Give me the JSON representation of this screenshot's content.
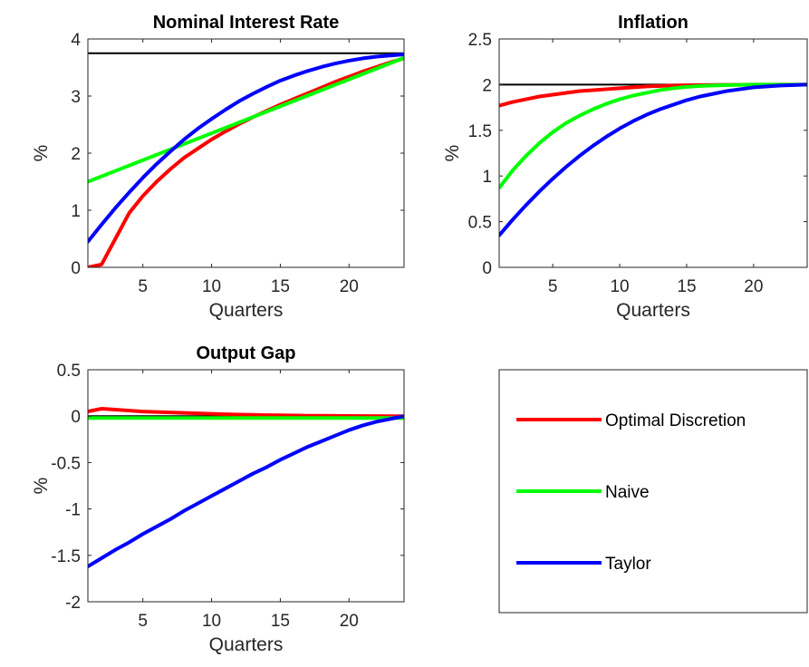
{
  "chart_data": [
    {
      "type": "line",
      "title": "Nominal Interest Rate",
      "xlabel": "Quarters",
      "ylabel": "%",
      "xlim": [
        1,
        24
      ],
      "ylim": [
        0,
        4
      ],
      "xticks": [
        "5",
        "10",
        "15",
        "20"
      ],
      "yticks": [
        "0",
        "1",
        "2",
        "3",
        "4"
      ],
      "reference_line": {
        "y": 3.75,
        "color": "#000000"
      },
      "series": [
        {
          "color": "#ff0000",
          "x": [
            1,
            2,
            3,
            4,
            5,
            6,
            7,
            8,
            9,
            10,
            11,
            12,
            13,
            14,
            15,
            16,
            17,
            18,
            19,
            20,
            21,
            22,
            23,
            24
          ],
          "values": [
            0,
            0.05,
            0.5,
            0.95,
            1.25,
            1.5,
            1.72,
            1.92,
            2.08,
            2.24,
            2.38,
            2.51,
            2.63,
            2.74,
            2.85,
            2.95,
            3.05,
            3.15,
            3.25,
            3.34,
            3.43,
            3.51,
            3.59,
            3.66
          ]
        },
        {
          "color": "#00ff00",
          "x": [
            1,
            24
          ],
          "values": [
            1.5,
            3.67
          ]
        },
        {
          "color": "#0000ff",
          "x": [
            1,
            2,
            3,
            4,
            5,
            6,
            7,
            8,
            9,
            10,
            11,
            12,
            13,
            14,
            15,
            16,
            17,
            18,
            19,
            20,
            21,
            22,
            23,
            24
          ],
          "values": [
            0.45,
            0.75,
            1.04,
            1.31,
            1.57,
            1.81,
            2.03,
            2.24,
            2.43,
            2.6,
            2.76,
            2.91,
            3.04,
            3.16,
            3.27,
            3.36,
            3.44,
            3.51,
            3.57,
            3.62,
            3.66,
            3.69,
            3.71,
            3.73
          ]
        }
      ]
    },
    {
      "type": "line",
      "title": "Inflation",
      "xlabel": "Quarters",
      "ylabel": "%",
      "xlim": [
        1,
        24
      ],
      "ylim": [
        0,
        2.5
      ],
      "xticks": [
        "5",
        "10",
        "15",
        "20"
      ],
      "yticks": [
        "0",
        "0.5",
        "1",
        "1.5",
        "2",
        "2.5"
      ],
      "reference_line": {
        "y": 2,
        "color": "#000000"
      },
      "series": [
        {
          "color": "#ff0000",
          "x": [
            1,
            2,
            3,
            4,
            5,
            6,
            7,
            8,
            9,
            10,
            11,
            12,
            13,
            14,
            15,
            16,
            17,
            18,
            19,
            20,
            21,
            22,
            23,
            24
          ],
          "values": [
            1.77,
            1.81,
            1.84,
            1.87,
            1.89,
            1.91,
            1.93,
            1.94,
            1.95,
            1.96,
            1.97,
            1.98,
            1.985,
            1.99,
            1.993,
            1.995,
            1.997,
            1.998,
            1.999,
            2.0,
            2.0,
            2.0,
            2.0,
            2.0
          ]
        },
        {
          "color": "#00ff00",
          "x": [
            1,
            2,
            3,
            4,
            5,
            6,
            7,
            8,
            9,
            10,
            11,
            12,
            13,
            14,
            15,
            16,
            17,
            18,
            19,
            20,
            21,
            22,
            23,
            24
          ],
          "values": [
            0.87,
            1.06,
            1.22,
            1.36,
            1.48,
            1.58,
            1.66,
            1.73,
            1.79,
            1.84,
            1.88,
            1.91,
            1.94,
            1.96,
            1.975,
            1.985,
            1.99,
            1.995,
            1.998,
            2.0,
            2.0,
            2.0,
            2.0,
            2.0
          ]
        },
        {
          "color": "#0000ff",
          "x": [
            1,
            2,
            3,
            4,
            5,
            6,
            7,
            8,
            9,
            10,
            11,
            12,
            13,
            14,
            15,
            16,
            17,
            18,
            19,
            20,
            21,
            22,
            23,
            24
          ],
          "values": [
            0.35,
            0.52,
            0.68,
            0.83,
            0.97,
            1.1,
            1.22,
            1.33,
            1.43,
            1.52,
            1.6,
            1.67,
            1.73,
            1.78,
            1.83,
            1.87,
            1.9,
            1.93,
            1.95,
            1.97,
            1.98,
            1.99,
            1.995,
            2.0
          ]
        }
      ]
    },
    {
      "type": "line",
      "title": "Output Gap",
      "xlabel": "Quarters",
      "ylabel": "%",
      "xlim": [
        1,
        24
      ],
      "ylim": [
        -2,
        0.5
      ],
      "xticks": [
        "5",
        "10",
        "15",
        "20"
      ],
      "yticks": [
        "-2",
        "-1.5",
        "-1",
        "-0.5",
        "0",
        "0.5"
      ],
      "reference_line": {
        "y": 0,
        "color": "#000000"
      },
      "series": [
        {
          "color": "#ff0000",
          "x": [
            1,
            2,
            3,
            4,
            5,
            6,
            7,
            8,
            9,
            10,
            11,
            12,
            13,
            14,
            15,
            16,
            17,
            18,
            19,
            20,
            21,
            22,
            23,
            24
          ],
          "values": [
            0.05,
            0.08,
            0.07,
            0.06,
            0.05,
            0.045,
            0.04,
            0.035,
            0.03,
            0.025,
            0.02,
            0.017,
            0.014,
            0.011,
            0.009,
            0.007,
            0.005,
            0.004,
            0.003,
            0.002,
            0.001,
            0.001,
            0.0,
            0.0
          ]
        },
        {
          "color": "#00ff00",
          "x": [
            1,
            24
          ],
          "values": [
            -0.02,
            -0.02
          ]
        },
        {
          "color": "#0000ff",
          "x": [
            1,
            2,
            3,
            4,
            5,
            6,
            7,
            8,
            9,
            10,
            11,
            12,
            13,
            14,
            15,
            16,
            17,
            18,
            19,
            20,
            21,
            22,
            23,
            24
          ],
          "values": [
            -1.62,
            -1.53,
            -1.44,
            -1.36,
            -1.27,
            -1.19,
            -1.11,
            -1.02,
            -0.94,
            -0.86,
            -0.78,
            -0.7,
            -0.62,
            -0.55,
            -0.47,
            -0.4,
            -0.33,
            -0.27,
            -0.21,
            -0.15,
            -0.1,
            -0.06,
            -0.03,
            0.0
          ]
        }
      ]
    }
  ],
  "legend": {
    "items": [
      {
        "label": "Optimal Discretion",
        "color": "#ff0000"
      },
      {
        "label": "Naive",
        "color": "#00ff00"
      },
      {
        "label": "Taylor",
        "color": "#0000ff"
      }
    ]
  }
}
